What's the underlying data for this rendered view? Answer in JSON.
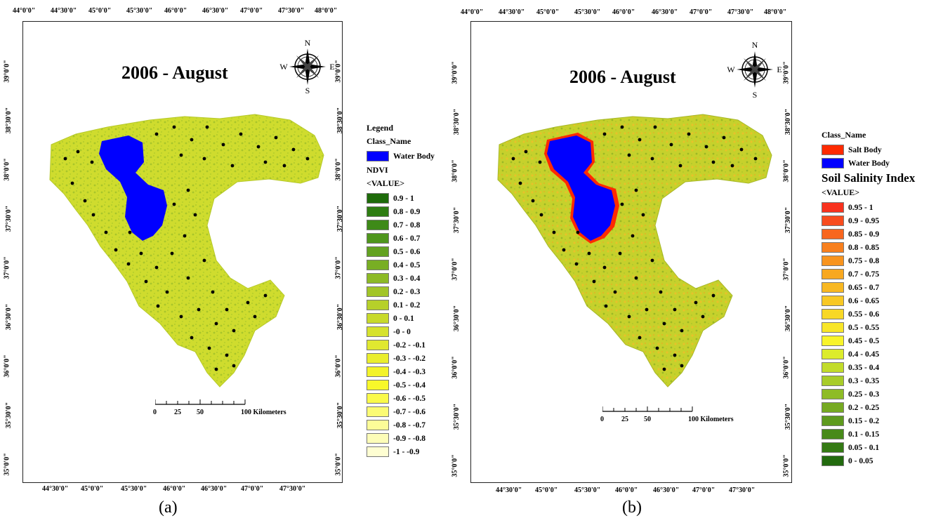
{
  "panel_a": {
    "title": "2006 - August",
    "caption": "(a)",
    "top_ticks": [
      "44°0'0\"",
      "44°30'0\"",
      "45°0'0\"",
      "45°30'0\"",
      "46°0'0\"",
      "46°30'0\"",
      "47°0'0\"",
      "47°30'0\"",
      "48°0'0\""
    ],
    "bottom_ticks": [
      "44°30'0\"",
      "45°0'0\"",
      "45°30'0\"",
      "46°0'0\"",
      "46°30'0\"",
      "47°0'0\"",
      "47°30'0\""
    ],
    "lat_ticks": [
      "39°0'0\"",
      "38°30'0\"",
      "38°0'0\"",
      "37°30'0\"",
      "37°0'0\"",
      "36°30'0\"",
      "36°0'0\"",
      "35°30'0\"",
      "35°0'0\""
    ],
    "compass": {
      "n": "N",
      "s": "S",
      "e": "E",
      "w": "W"
    },
    "scalebar": {
      "labels": [
        "0",
        "25",
        "50",
        "100 Kilometers"
      ]
    },
    "legend": {
      "title": "Legend",
      "class_header": "Class_Name",
      "classes": [
        {
          "label": "Water Body",
          "color": "#0000ff"
        }
      ],
      "index_header": "NDVI",
      "value_header": "<VALUE>",
      "items": [
        {
          "label": "0.9 - 1",
          "color": "#1e6b0a"
        },
        {
          "label": "0.8 - 0.9",
          "color": "#2e7d12"
        },
        {
          "label": "0.7 - 0.8",
          "color": "#3e8a18"
        },
        {
          "label": "0.6 - 0.7",
          "color": "#4f961d"
        },
        {
          "label": "0.5 - 0.6",
          "color": "#63a221"
        },
        {
          "label": "0.4 - 0.5",
          "color": "#78ae24"
        },
        {
          "label": "0.3 - 0.4",
          "color": "#8dba26"
        },
        {
          "label": "0.2 - 0.3",
          "color": "#a2c528"
        },
        {
          "label": "0.1 - 0.2",
          "color": "#b6d02a"
        },
        {
          "label": "0 - 0.1",
          "color": "#c8da2c"
        },
        {
          "label": "-0 - 0",
          "color": "#d6e22e"
        },
        {
          "label": "-0.2 - -0.1",
          "color": "#e0e830"
        },
        {
          "label": "-0.3 - -0.2",
          "color": "#eaee2e"
        },
        {
          "label": "-0.4 - -0.3",
          "color": "#f3f32a"
        },
        {
          "label": "-0.5 - -0.4",
          "color": "#f8f82a"
        },
        {
          "label": "-0.6 - -0.5",
          "color": "#fafa4a"
        },
        {
          "label": "-0.7 - -0.6",
          "color": "#fbfb74"
        },
        {
          "label": "-0.8 - -0.7",
          "color": "#fcfc98"
        },
        {
          "label": "-0.9 - -0.8",
          "color": "#fdfdb8"
        },
        {
          "label": "-1 - -0.9",
          "color": "#fefed2"
        }
      ]
    }
  },
  "panel_b": {
    "title": "2006 - August",
    "caption": "(b)",
    "top_ticks": [
      "44°0'0\"",
      "44°30'0\"",
      "45°0'0\"",
      "45°30'0\"",
      "46°0'0\"",
      "46°30'0\"",
      "47°0'0\"",
      "47°30'0\"",
      "48°0'0\""
    ],
    "bottom_ticks": [
      "44°30'0\"",
      "45°0'0\"",
      "45°30'0\"",
      "46°0'0\"",
      "46°30'0\"",
      "47°0'0\"",
      "47°30'0\""
    ],
    "lat_ticks": [
      "39°0'0\"",
      "38°30'0\"",
      "38°0'0\"",
      "37°30'0\"",
      "37°0'0\"",
      "36°30'0\"",
      "36°0'0\"",
      "35°30'0\"",
      "35°0'0\""
    ],
    "compass": {
      "n": "N",
      "s": "S",
      "e": "E",
      "w": "W"
    },
    "scalebar": {
      "labels": [
        "0",
        "25",
        "50",
        "100 Kilometers"
      ]
    },
    "legend": {
      "class_header": "Class_Name",
      "classes": [
        {
          "label": "Salt Body",
          "color": "#ff2a00"
        },
        {
          "label": "Water Body",
          "color": "#0000ff"
        }
      ],
      "index_header": "Soil Salinity Index",
      "value_header": "<VALUE>",
      "items": [
        {
          "label": "0.95 - 1",
          "color": "#f8321e"
        },
        {
          "label": "0.9 - 0.95",
          "color": "#f84c1e"
        },
        {
          "label": "0.85 - 0.9",
          "color": "#f8661e"
        },
        {
          "label": "0.8 - 0.85",
          "color": "#f8801e"
        },
        {
          "label": "0.75 - 0.8",
          "color": "#f8941e"
        },
        {
          "label": "0.7 - 0.75",
          "color": "#f8a820"
        },
        {
          "label": "0.65 - 0.7",
          "color": "#f8b822"
        },
        {
          "label": "0.6 - 0.65",
          "color": "#f8c824"
        },
        {
          "label": "0.55 - 0.6",
          "color": "#f8d826"
        },
        {
          "label": "0.5 - 0.55",
          "color": "#f8e628"
        },
        {
          "label": "0.45 - 0.5",
          "color": "#f8f42a"
        },
        {
          "label": "0.4 - 0.45",
          "color": "#dcec2c"
        },
        {
          "label": "0.35 - 0.4",
          "color": "#c2dc2a"
        },
        {
          "label": "0.3 - 0.35",
          "color": "#a8cc28"
        },
        {
          "label": "0.25 - 0.3",
          "color": "#8ebc26"
        },
        {
          "label": "0.2 - 0.25",
          "color": "#76aa22"
        },
        {
          "label": "0.15 - 0.2",
          "color": "#5e9a1e"
        },
        {
          "label": "0.1 - 0.15",
          "color": "#488a1a"
        },
        {
          "label": "0.05 - 0.1",
          "color": "#347a14"
        },
        {
          "label": "0 - 0.05",
          "color": "#226a0e"
        }
      ]
    }
  }
}
